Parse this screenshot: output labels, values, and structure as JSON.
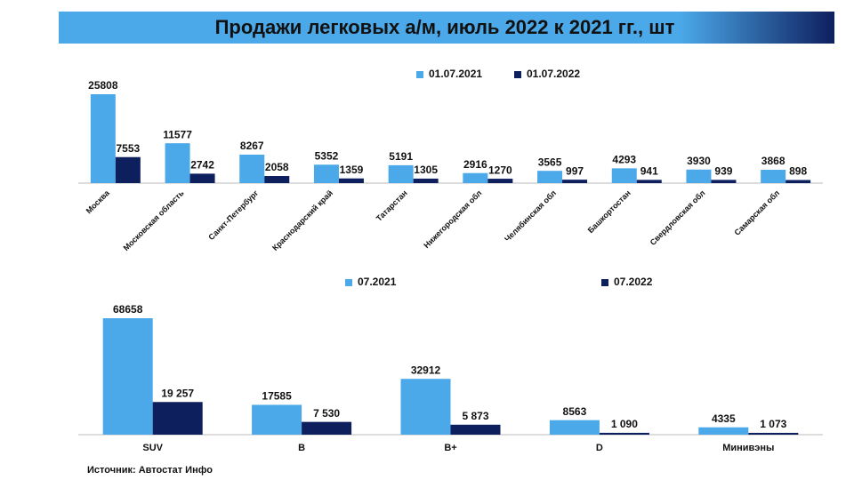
{
  "header": {
    "title": "Продажи легковых а/м, июль 2022 к 2021 гг., шт"
  },
  "source": "Источник: Автостат Инфо",
  "chart_data": [
    {
      "type": "bar",
      "categories": [
        "Москва",
        "Московская область",
        "Санкт-Петербург",
        "Краснодарский край",
        "Татарстан",
        "Нижегородская обл",
        "Челябинская обл",
        "Башкортостан",
        "Свердловская обл",
        "Самарская обл"
      ],
      "series": [
        {
          "name": "01.07.2021",
          "color": "#4ba9e9",
          "values": [
            25808,
            11577,
            8267,
            5352,
            5191,
            2916,
            3565,
            4293,
            3930,
            3868
          ]
        },
        {
          "name": "01.07.2022",
          "color": "#0e1f5e",
          "values": [
            7553,
            2742,
            2058,
            1359,
            1305,
            1270,
            997,
            941,
            939,
            898
          ]
        }
      ]
    },
    {
      "type": "bar",
      "categories": [
        "SUV",
        "B",
        "B+",
        "D",
        "Минивэны"
      ],
      "series": [
        {
          "name": "07.2021",
          "color": "#4ba9e9",
          "values": [
            68658,
            17585,
            32912,
            8563,
            4335
          ]
        },
        {
          "name": "07.2022",
          "color": "#0e1f5e",
          "values": [
            19257,
            7530,
            5873,
            1090,
            1073
          ],
          "value_labels": [
            "19 257",
            "7 530",
            "5 873",
            "1 090",
            "1 073"
          ]
        }
      ]
    }
  ]
}
